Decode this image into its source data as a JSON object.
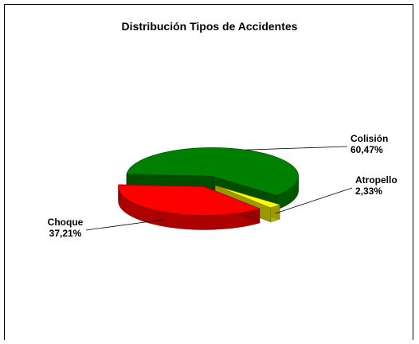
{
  "chart_data": {
    "type": "pie3d",
    "title": "Distribución Tipos de Accidentes",
    "categories": [
      "Colisión",
      "Atropello",
      "Choque"
    ],
    "values": [
      60.47,
      2.33,
      37.21
    ],
    "value_labels": [
      "60,47%",
      "2,33%",
      "37,21%"
    ],
    "colors": [
      "#008000",
      "#ffff00",
      "#ff0000"
    ]
  }
}
